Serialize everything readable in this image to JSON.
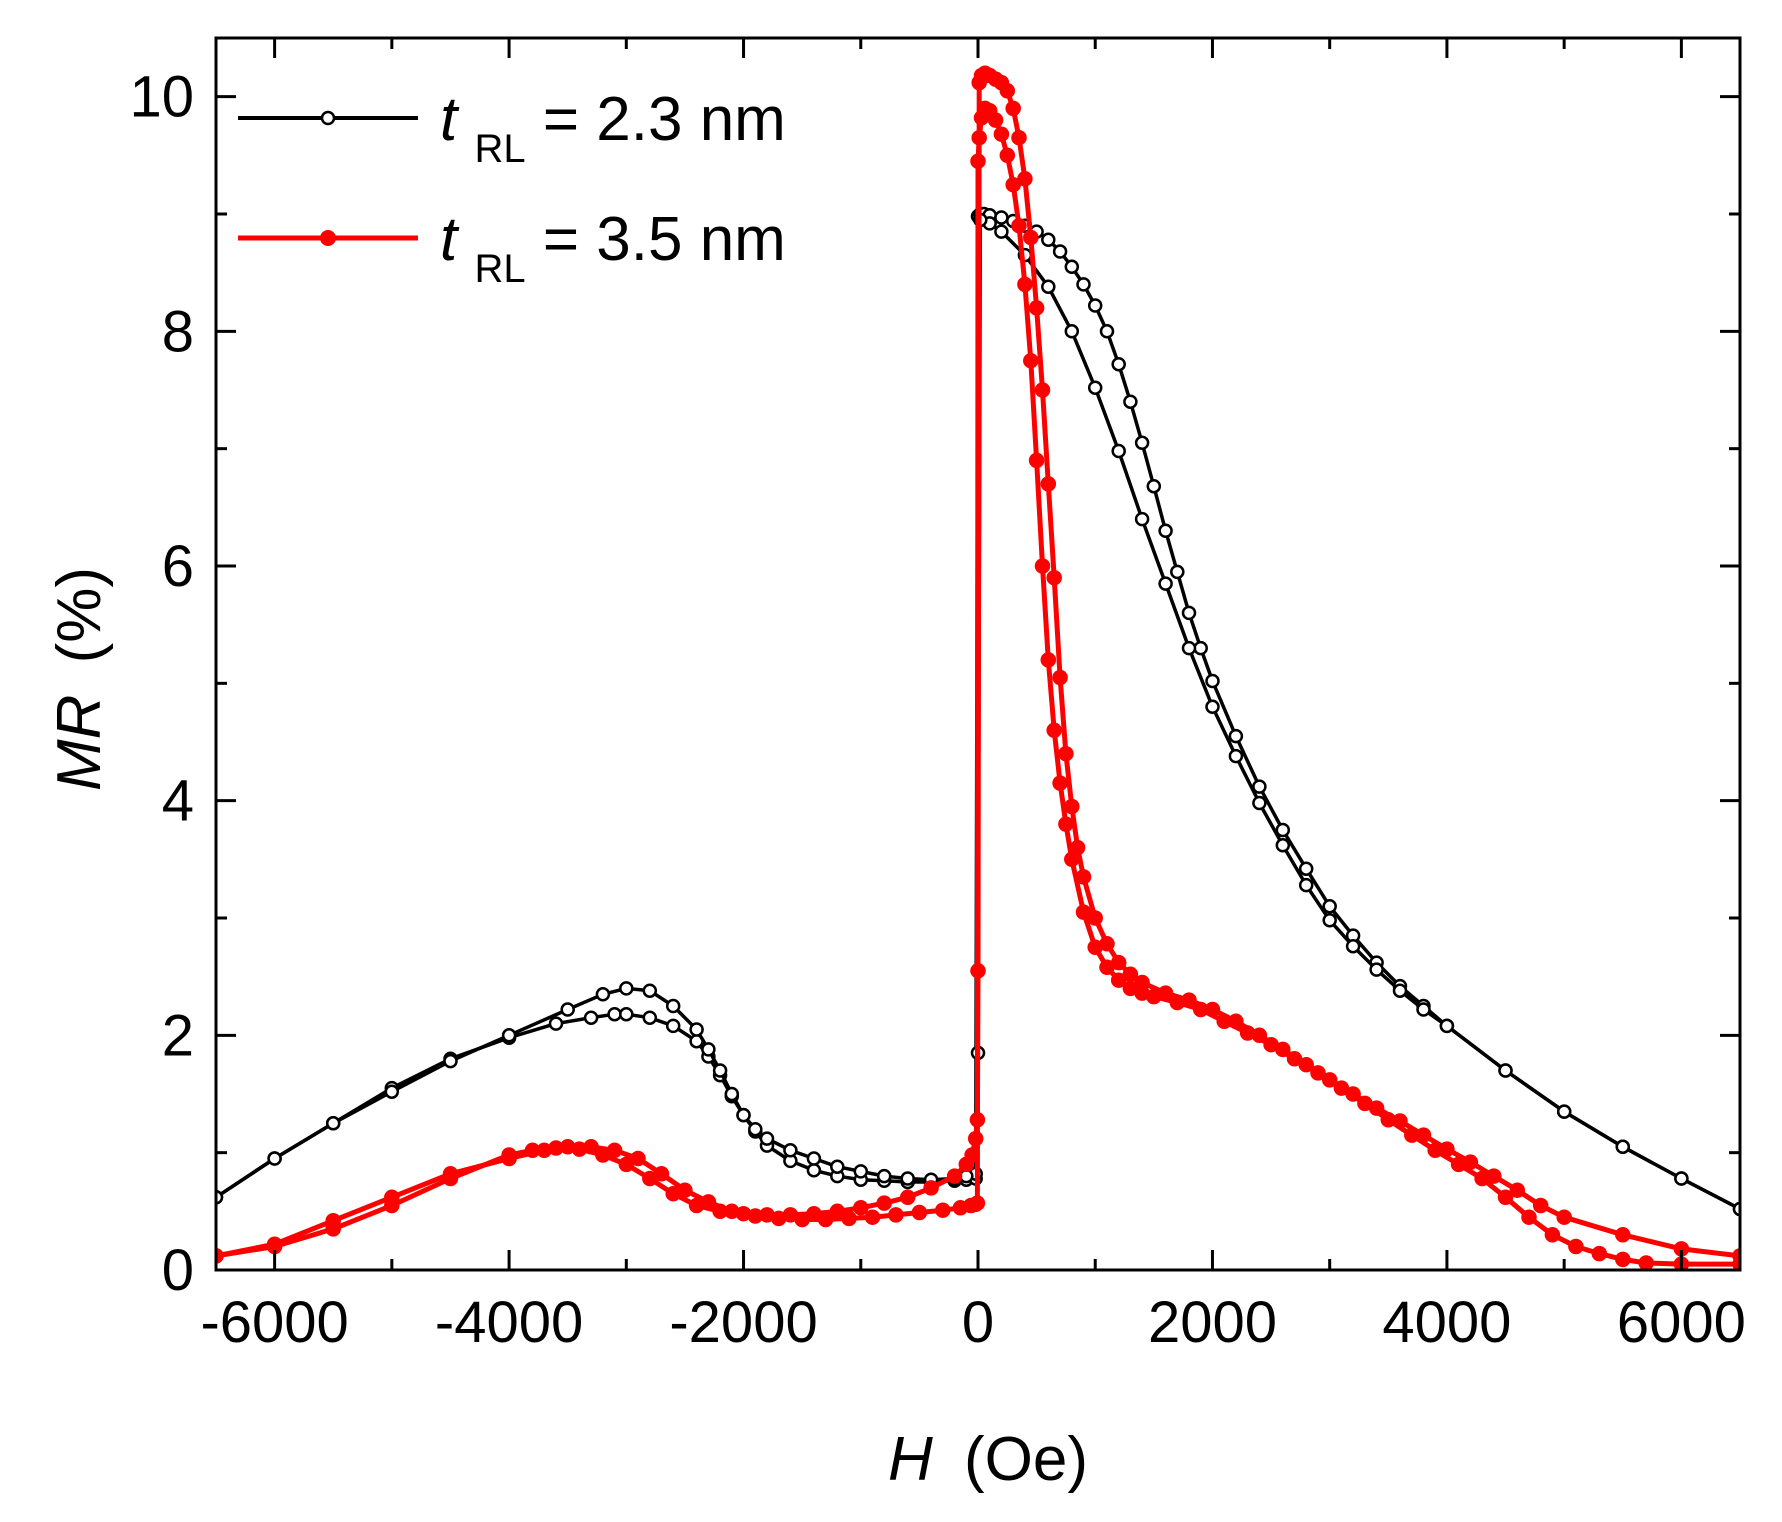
{
  "chart_data": {
    "type": "line",
    "title": "",
    "xlabel": {
      "symbol": "H",
      "unit": "(Oe)"
    },
    "ylabel": {
      "symbol": "MR",
      "unit": "(%)"
    },
    "xlim": [
      -6500,
      6500
    ],
    "ylim": [
      0,
      10.5
    ],
    "x_ticks": [
      -6000,
      -4000,
      -2000,
      0,
      2000,
      4000,
      6000
    ],
    "x_tick_labels": [
      "-6000",
      "-4000",
      "-2000",
      "0",
      "2000",
      "4000",
      "6000"
    ],
    "y_ticks": [
      0,
      2,
      4,
      6,
      8,
      10
    ],
    "y_tick_labels": [
      "0",
      "2",
      "4",
      "6",
      "8",
      "10"
    ],
    "grid": false,
    "legend_position": "top-left",
    "series": [
      {
        "name": "tRL = 2.3 nm",
        "legend": {
          "italic": "t",
          "sub": "RL",
          "rest": " = 2.3 nm"
        },
        "color": "#000000",
        "marker": "open-circle",
        "branches": [
          {
            "x": [
              -6500,
              -6000,
              -5500,
              -5000,
              -4500,
              -4000,
              -3600,
              -3300,
              -3100,
              -3000,
              -2800,
              -2600,
              -2400,
              -2300,
              -2200,
              -2100,
              -2000,
              -1900,
              -1800,
              -1600,
              -1400,
              -1200,
              -1000,
              -800,
              -600,
              -400,
              -200,
              -100,
              -20,
              0,
              20,
              50,
              100,
              200,
              300,
              400,
              500,
              600,
              700,
              800,
              900,
              1000,
              1100,
              1200,
              1300,
              1400,
              1500,
              1600,
              1700,
              1800,
              1900,
              2000,
              2200,
              2400,
              2600,
              2800,
              3000,
              3200,
              3400,
              3600,
              3800,
              4000,
              4500,
              5000,
              5500,
              6000,
              6500
            ],
            "y": [
              0.62,
              0.95,
              1.25,
              1.55,
              1.8,
              1.98,
              2.1,
              2.15,
              2.18,
              2.18,
              2.15,
              2.08,
              1.95,
              1.82,
              1.66,
              1.48,
              1.32,
              1.18,
              1.06,
              0.93,
              0.85,
              0.8,
              0.77,
              0.76,
              0.75,
              0.75,
              0.76,
              0.77,
              0.78,
              8.98,
              9.0,
              9.0,
              8.99,
              8.97,
              8.94,
              8.9,
              8.85,
              8.78,
              8.68,
              8.55,
              8.4,
              8.22,
              8.0,
              7.72,
              7.4,
              7.05,
              6.68,
              6.3,
              5.95,
              5.6,
              5.3,
              5.02,
              4.55,
              4.12,
              3.75,
              3.42,
              3.1,
              2.85,
              2.62,
              2.42,
              2.25,
              2.08,
              1.7,
              1.35,
              1.05,
              0.78,
              0.52
            ]
          },
          {
            "x": [
              6500,
              6000,
              5500,
              5000,
              4500,
              4000,
              3800,
              3600,
              3400,
              3200,
              3000,
              2800,
              2600,
              2400,
              2200,
              2000,
              1800,
              1600,
              1400,
              1200,
              1000,
              800,
              600,
              400,
              200,
              100,
              20,
              0,
              -20,
              -100,
              -200,
              -400,
              -600,
              -800,
              -1000,
              -1200,
              -1400,
              -1600,
              -1800,
              -1900,
              -2000,
              -2100,
              -2200,
              -2300,
              -2400,
              -2600,
              -2800,
              -3000,
              -3200,
              -3500,
              -4000,
              -4500,
              -5000,
              -5500,
              -6000,
              -6500
            ],
            "y": [
              0.52,
              0.78,
              1.05,
              1.35,
              1.7,
              2.08,
              2.22,
              2.38,
              2.56,
              2.76,
              2.98,
              3.28,
              3.62,
              3.98,
              4.38,
              4.8,
              5.3,
              5.85,
              6.4,
              6.98,
              7.52,
              8.0,
              8.38,
              8.65,
              8.85,
              8.92,
              8.95,
              1.85,
              0.82,
              0.8,
              0.78,
              0.77,
              0.78,
              0.8,
              0.84,
              0.88,
              0.95,
              1.02,
              1.12,
              1.2,
              1.32,
              1.5,
              1.7,
              1.88,
              2.05,
              2.25,
              2.38,
              2.4,
              2.35,
              2.22,
              2.0,
              1.78,
              1.52,
              1.25,
              0.95,
              0.62
            ]
          }
        ]
      },
      {
        "name": "tRL = 3.5 nm",
        "legend": {
          "italic": "t",
          "sub": "RL",
          "rest": " = 3.5 nm"
        },
        "color": "#ff0000",
        "marker": "filled-circle",
        "branches": [
          {
            "x": [
              -6500,
              -6000,
              -5500,
              -5000,
              -4500,
              -4000,
              -3700,
              -3500,
              -3300,
              -3100,
              -2900,
              -2700,
              -2500,
              -2300,
              -2100,
              -1900,
              -1700,
              -1500,
              -1300,
              -1100,
              -900,
              -700,
              -500,
              -300,
              -150,
              -60,
              -20,
              -5,
              0,
              10,
              30,
              60,
              100,
              150,
              200,
              250,
              300,
              350,
              400,
              450,
              500,
              550,
              600,
              650,
              700,
              750,
              800,
              900,
              1000,
              1100,
              1200,
              1300,
              1400,
              1500,
              1700,
              1900,
              2100,
              2300,
              2500,
              2700,
              2900,
              3100,
              3300,
              3500,
              3700,
              3900,
              4100,
              4300,
              4500,
              4700,
              4900,
              5100,
              5300,
              5500,
              5700,
              6000,
              6500
            ],
            "y": [
              0.12,
              0.22,
              0.42,
              0.62,
              0.82,
              0.95,
              1.02,
              1.05,
              1.05,
              1.02,
              0.95,
              0.82,
              0.68,
              0.58,
              0.5,
              0.46,
              0.44,
              0.43,
              0.43,
              0.44,
              0.45,
              0.47,
              0.49,
              0.51,
              0.53,
              0.55,
              0.56,
              0.57,
              9.45,
              9.65,
              9.82,
              9.9,
              9.88,
              9.8,
              9.68,
              9.5,
              9.25,
              8.9,
              8.4,
              7.75,
              6.9,
              6.0,
              5.2,
              4.6,
              4.15,
              3.8,
              3.5,
              3.05,
              2.75,
              2.58,
              2.47,
              2.4,
              2.36,
              2.33,
              2.28,
              2.22,
              2.12,
              2.02,
              1.92,
              1.8,
              1.68,
              1.55,
              1.42,
              1.28,
              1.15,
              1.02,
              0.9,
              0.78,
              0.62,
              0.45,
              0.3,
              0.2,
              0.14,
              0.09,
              0.06,
              0.05,
              0.05
            ]
          },
          {
            "x": [
              6500,
              6000,
              5500,
              5000,
              4800,
              4600,
              4400,
              4200,
              4000,
              3800,
              3600,
              3400,
              3200,
              3000,
              2800,
              2600,
              2400,
              2200,
              2000,
              1800,
              1600,
              1400,
              1300,
              1200,
              1100,
              1000,
              900,
              850,
              800,
              750,
              700,
              650,
              600,
              550,
              500,
              450,
              400,
              350,
              300,
              250,
              200,
              150,
              100,
              60,
              30,
              10,
              0,
              -5,
              -20,
              -50,
              -100,
              -200,
              -400,
              -600,
              -800,
              -1000,
              -1200,
              -1400,
              -1600,
              -1800,
              -2000,
              -2200,
              -2400,
              -2600,
              -2800,
              -3000,
              -3200,
              -3400,
              -3600,
              -3800,
              -4000,
              -4500,
              -5000,
              -5500,
              -6000,
              -6500
            ],
            "y": [
              0.12,
              0.18,
              0.3,
              0.45,
              0.55,
              0.68,
              0.8,
              0.92,
              1.03,
              1.15,
              1.27,
              1.38,
              1.5,
              1.62,
              1.75,
              1.88,
              2.0,
              2.12,
              2.22,
              2.3,
              2.36,
              2.45,
              2.52,
              2.62,
              2.78,
              3.0,
              3.35,
              3.6,
              3.95,
              4.4,
              5.05,
              5.9,
              6.7,
              7.5,
              8.2,
              8.8,
              9.3,
              9.65,
              9.9,
              10.05,
              10.12,
              10.15,
              10.18,
              10.2,
              10.18,
              10.12,
              2.55,
              1.28,
              1.12,
              0.98,
              0.9,
              0.8,
              0.7,
              0.62,
              0.57,
              0.53,
              0.5,
              0.48,
              0.47,
              0.47,
              0.48,
              0.5,
              0.55,
              0.65,
              0.78,
              0.9,
              0.98,
              1.03,
              1.04,
              1.02,
              0.98,
              0.78,
              0.55,
              0.35,
              0.2,
              0.12
            ]
          }
        ]
      }
    ]
  }
}
